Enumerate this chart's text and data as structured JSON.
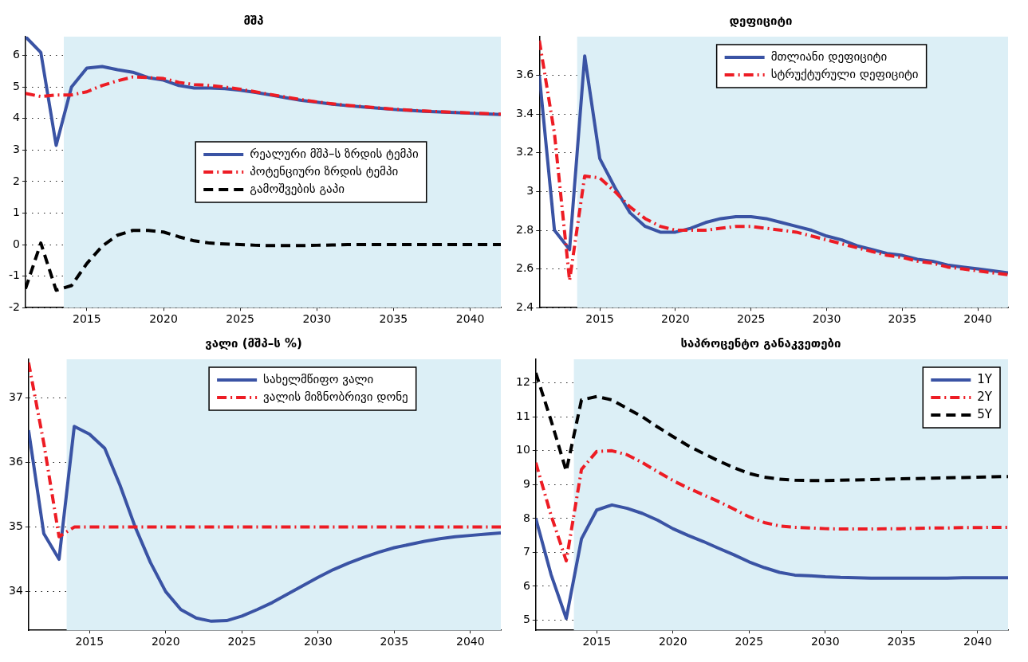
{
  "chart_data": [
    {
      "type": "line",
      "title": "მშპ",
      "x": [
        2011,
        2012,
        2013,
        2014,
        2015,
        2016,
        2017,
        2018,
        2019,
        2020,
        2021,
        2022,
        2023,
        2024,
        2025,
        2026,
        2027,
        2028,
        2029,
        2030,
        2031,
        2032,
        2033,
        2034,
        2035,
        2036,
        2037,
        2038,
        2039,
        2040,
        2041,
        2042
      ],
      "xlim": [
        2011,
        2042
      ],
      "xticks": [
        2015,
        2020,
        2025,
        2030,
        2035,
        2040
      ],
      "ylim": [
        -2,
        6.6
      ],
      "yticks": [
        -2,
        -1,
        0,
        1,
        2,
        3,
        4,
        5,
        6
      ],
      "grid": true,
      "legend": "center",
      "bands": [
        {
          "axis": "x",
          "from": 2013.5,
          "to": 2042,
          "color": "#dceff6"
        }
      ],
      "series": [
        {
          "name": "რეალური მშპ–ს ზრდის ტემპი",
          "color": "#3a53a4",
          "line_style": "solid",
          "values": [
            6.6,
            6.1,
            3.15,
            5.0,
            5.6,
            5.65,
            5.55,
            5.47,
            5.3,
            5.22,
            5.05,
            4.97,
            4.97,
            4.95,
            4.9,
            4.83,
            4.75,
            4.66,
            4.58,
            4.52,
            4.46,
            4.41,
            4.37,
            4.33,
            4.29,
            4.26,
            4.23,
            4.21,
            4.19,
            4.17,
            4.15,
            4.13
          ]
        },
        {
          "name": "პოტენციური ზრდის ტემპი",
          "color": "#ed1c24",
          "line_style": "dashdot",
          "values": [
            4.8,
            4.7,
            4.75,
            4.75,
            4.85,
            5.05,
            5.2,
            5.32,
            5.3,
            5.27,
            5.15,
            5.08,
            5.05,
            5.0,
            4.93,
            4.85,
            4.76,
            4.68,
            4.6,
            4.53,
            4.47,
            4.42,
            4.38,
            4.34,
            4.3,
            4.27,
            4.24,
            4.22,
            4.2,
            4.18,
            4.16,
            4.14
          ]
        },
        {
          "name": "გამოშვების გაპი",
          "color": "#000000",
          "line_style": "dashed",
          "values": [
            -1.4,
            0.05,
            -1.45,
            -1.3,
            -0.6,
            -0.05,
            0.3,
            0.45,
            0.45,
            0.4,
            0.25,
            0.12,
            0.05,
            0.02,
            0,
            -0.02,
            -0.03,
            -0.03,
            -0.03,
            -0.02,
            -0.01,
            0,
            0,
            0,
            0,
            0,
            0,
            0,
            0,
            0,
            0,
            0
          ]
        }
      ]
    },
    {
      "type": "line",
      "title": "დეფიციტი",
      "x": [
        2011,
        2012,
        2013,
        2014,
        2015,
        2016,
        2017,
        2018,
        2019,
        2020,
        2021,
        2022,
        2023,
        2024,
        2025,
        2026,
        2027,
        2028,
        2029,
        2030,
        2031,
        2032,
        2033,
        2034,
        2035,
        2036,
        2037,
        2038,
        2039,
        2040,
        2041,
        2042
      ],
      "xlim": [
        2011,
        2042
      ],
      "xticks": [
        2015,
        2020,
        2025,
        2030,
        2035,
        2040
      ],
      "ylim": [
        2.4,
        3.8
      ],
      "yticks": [
        2.4,
        2.6,
        2.8,
        3,
        3.2,
        3.4,
        3.6
      ],
      "grid": true,
      "legend": "top",
      "bands": [
        {
          "axis": "x",
          "from": 2013.5,
          "to": 2042,
          "color": "#dceff6"
        }
      ],
      "series": [
        {
          "name": "მთლიანი დეფიციტი",
          "color": "#3a53a4",
          "line_style": "solid",
          "values": [
            3.6,
            2.8,
            2.7,
            3.7,
            3.17,
            3.02,
            2.89,
            2.82,
            2.79,
            2.79,
            2.81,
            2.84,
            2.86,
            2.87,
            2.87,
            2.86,
            2.84,
            2.82,
            2.8,
            2.77,
            2.75,
            2.72,
            2.7,
            2.68,
            2.67,
            2.65,
            2.64,
            2.62,
            2.61,
            2.6,
            2.59,
            2.58
          ]
        },
        {
          "name": "სტრუქტურული დეფიციტი",
          "color": "#ed1c24",
          "line_style": "dashdot",
          "values": [
            3.78,
            3.3,
            2.54,
            3.08,
            3.07,
            3.0,
            2.92,
            2.86,
            2.82,
            2.8,
            2.8,
            2.8,
            2.81,
            2.82,
            2.82,
            2.81,
            2.8,
            2.79,
            2.77,
            2.75,
            2.73,
            2.71,
            2.69,
            2.67,
            2.66,
            2.64,
            2.63,
            2.61,
            2.6,
            2.59,
            2.58,
            2.57
          ]
        }
      ]
    },
    {
      "type": "line",
      "title": "ვალი (მშპ–ს %)",
      "x": [
        2011,
        2012,
        2013,
        2014,
        2015,
        2016,
        2017,
        2018,
        2019,
        2020,
        2021,
        2022,
        2023,
        2024,
        2025,
        2026,
        2027,
        2028,
        2029,
        2030,
        2031,
        2032,
        2033,
        2034,
        2035,
        2036,
        2037,
        2038,
        2039,
        2040,
        2041,
        2042
      ],
      "xlim": [
        2011,
        2042
      ],
      "xticks": [
        2015,
        2020,
        2025,
        2030,
        2035,
        2040
      ],
      "ylim": [
        33.4,
        37.6
      ],
      "yticks": [
        34,
        35,
        36,
        37
      ],
      "grid": true,
      "legend": "top",
      "bands": [
        {
          "axis": "x",
          "from": 2013.5,
          "to": 2042,
          "color": "#dceff6"
        }
      ],
      "series": [
        {
          "name": "სახელმწიფო ვალი",
          "color": "#3a53a4",
          "line_style": "solid",
          "values": [
            36.5,
            34.9,
            34.5,
            36.56,
            36.44,
            36.22,
            35.65,
            35.0,
            34.45,
            34.0,
            33.72,
            33.59,
            33.54,
            33.55,
            33.62,
            33.72,
            33.83,
            33.96,
            34.09,
            34.22,
            34.34,
            34.44,
            34.53,
            34.61,
            34.68,
            34.73,
            34.78,
            34.82,
            34.85,
            34.87,
            34.89,
            34.91
          ]
        },
        {
          "name": "ვალის მიზნობრივი დონე",
          "color": "#ed1c24",
          "line_style": "dashdot",
          "values": [
            37.55,
            36.3,
            34.85,
            35,
            35,
            35,
            35,
            35,
            35,
            35,
            35,
            35,
            35,
            35,
            35,
            35,
            35,
            35,
            35,
            35,
            35,
            35,
            35,
            35,
            35,
            35,
            35,
            35,
            35,
            35,
            35,
            35
          ]
        }
      ]
    },
    {
      "type": "line",
      "title": "საპროცენტო განაკვეთები",
      "x": [
        2011,
        2012,
        2013,
        2014,
        2015,
        2016,
        2017,
        2018,
        2019,
        2020,
        2021,
        2022,
        2023,
        2024,
        2025,
        2026,
        2027,
        2028,
        2029,
        2030,
        2031,
        2032,
        2033,
        2034,
        2035,
        2036,
        2037,
        2038,
        2039,
        2040,
        2041,
        2042
      ],
      "xlim": [
        2011,
        2042
      ],
      "xticks": [
        2015,
        2020,
        2025,
        2030,
        2035,
        2040
      ],
      "ylim": [
        4.7,
        12.7
      ],
      "yticks": [
        5,
        6,
        7,
        8,
        9,
        10,
        11,
        12
      ],
      "grid": true,
      "legend": "top right",
      "bands": [
        {
          "axis": "x",
          "from": 2013.5,
          "to": 2042,
          "color": "#dceff6"
        }
      ],
      "series": [
        {
          "name": "1Y",
          "color": "#3a53a4",
          "line_style": "solid",
          "values": [
            8.0,
            6.35,
            5.05,
            7.4,
            8.25,
            8.4,
            8.3,
            8.15,
            7.95,
            7.7,
            7.5,
            7.32,
            7.12,
            6.93,
            6.72,
            6.55,
            6.41,
            6.33,
            6.31,
            6.28,
            6.26,
            6.25,
            6.24,
            6.24,
            6.24,
            6.24,
            6.24,
            6.24,
            6.25,
            6.25,
            6.25,
            6.25
          ]
        },
        {
          "name": "2Y",
          "color": "#ed1c24",
          "line_style": "dashdot",
          "values": [
            9.65,
            8.1,
            6.75,
            9.45,
            9.98,
            10.0,
            9.88,
            9.65,
            9.38,
            9.12,
            8.9,
            8.7,
            8.5,
            8.28,
            8.05,
            7.88,
            7.78,
            7.74,
            7.72,
            7.7,
            7.69,
            7.69,
            7.69,
            7.7,
            7.7,
            7.71,
            7.72,
            7.72,
            7.73,
            7.73,
            7.74,
            7.74
          ]
        },
        {
          "name": "5Y",
          "color": "#000000",
          "line_style": "dashed",
          "values": [
            12.3,
            10.9,
            9.4,
            11.5,
            11.6,
            11.5,
            11.25,
            11.0,
            10.7,
            10.42,
            10.15,
            9.92,
            9.7,
            9.5,
            9.33,
            9.22,
            9.16,
            9.13,
            9.12,
            9.12,
            9.13,
            9.14,
            9.15,
            9.16,
            9.17,
            9.18,
            9.19,
            9.2,
            9.21,
            9.22,
            9.23,
            9.24
          ]
        }
      ]
    }
  ]
}
